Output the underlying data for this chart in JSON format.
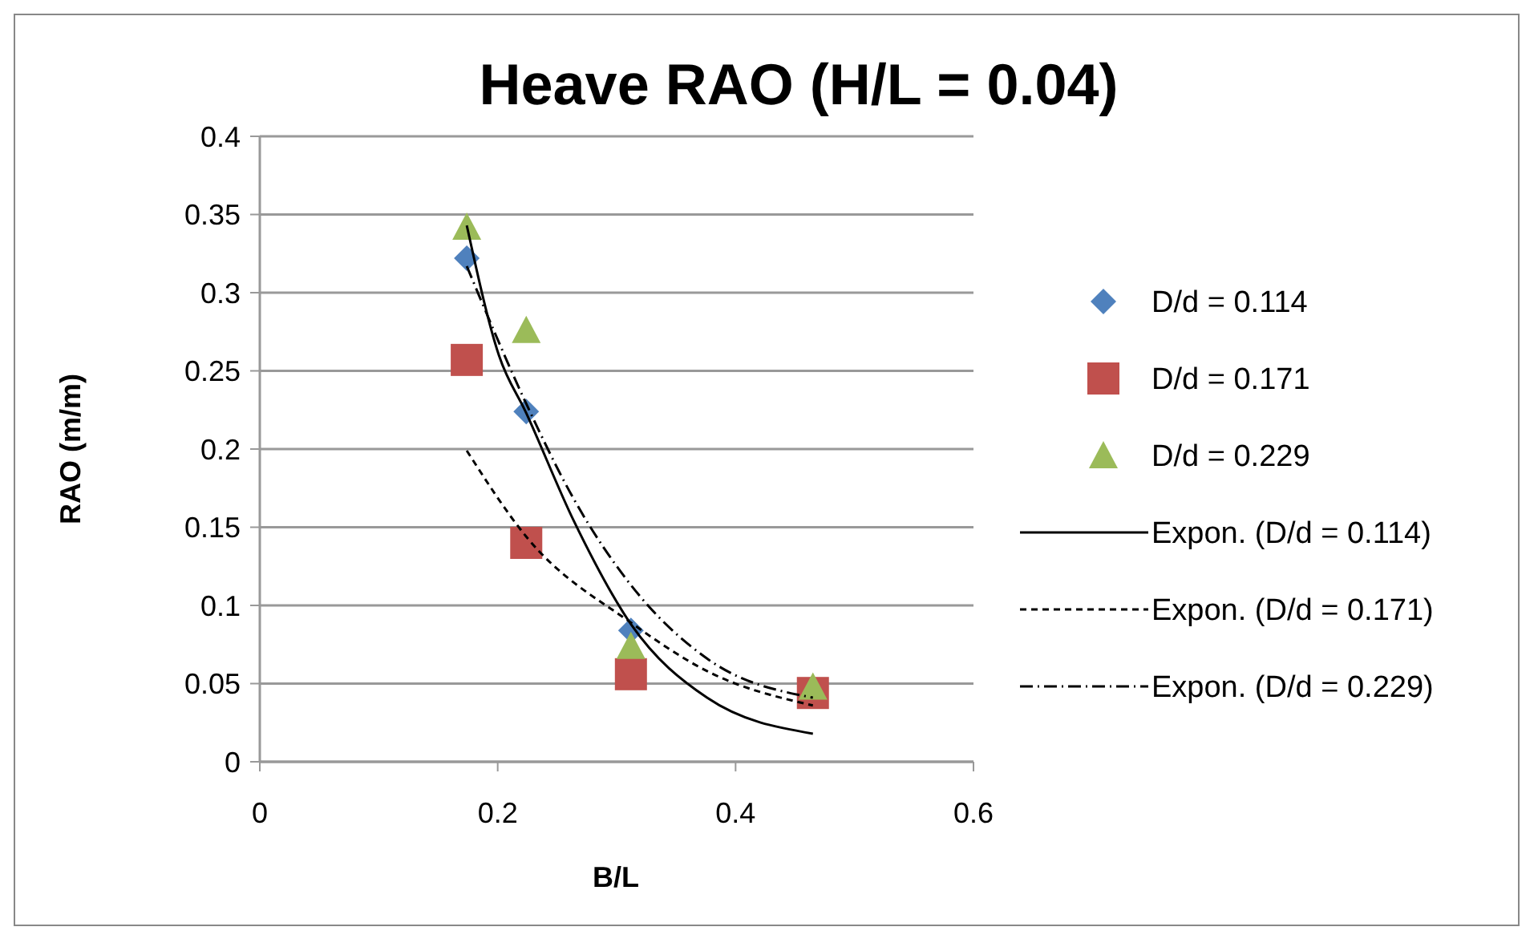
{
  "chart_data": {
    "type": "scatter",
    "title": "Heave RAO (H/L = 0.04)",
    "xlabel": "B/L",
    "ylabel": "RAO (m/m)",
    "xlim": [
      0,
      0.6
    ],
    "xticks": [
      0,
      0.2,
      0.4,
      0.6
    ],
    "ylim": [
      0,
      0.4
    ],
    "yticks": [
      0,
      0.05,
      0.1,
      0.15,
      0.2,
      0.25,
      0.3,
      0.35,
      0.4
    ],
    "grid": "y",
    "legend": "right",
    "series": [
      {
        "name": "D/d = 0.114",
        "marker": "diamond",
        "color": "#4f81bd",
        "x": [
          0.174,
          0.224,
          0.312
        ],
        "values": [
          0.322,
          0.224,
          0.084
        ]
      },
      {
        "name": "D/d = 0.171",
        "marker": "square",
        "color": "#c0504d",
        "x": [
          0.174,
          0.224,
          0.312,
          0.465
        ],
        "values": [
          0.257,
          0.14,
          0.056,
          0.044
        ]
      },
      {
        "name": "D/d = 0.229",
        "marker": "triangle",
        "color": "#9bbb59",
        "x": [
          0.174,
          0.224,
          0.312,
          0.465
        ],
        "values": [
          0.342,
          0.276,
          0.074,
          0.048
        ]
      },
      {
        "name": "Expon. (D/d = 0.114)",
        "type": "line",
        "line_style": "solid",
        "color": "#000000",
        "x": [
          0.174,
          0.201,
          0.224,
          0.264,
          0.312,
          0.376,
          0.465
        ],
        "values": [
          0.343,
          0.26,
          0.223,
          0.154,
          0.088,
          0.041,
          0.018
        ]
      },
      {
        "name": "Expon. (D/d = 0.171)",
        "type": "line",
        "line_style": "dashed",
        "color": "#000000",
        "x": [
          0.174,
          0.224,
          0.312,
          0.376,
          0.465
        ],
        "values": [
          0.199,
          0.144,
          0.089,
          0.058,
          0.036
        ]
      },
      {
        "name": "Expon. (D/d = 0.229)",
        "type": "line",
        "line_style": "dashdot",
        "color": "#000000",
        "x": [
          0.174,
          0.224,
          0.264,
          0.312,
          0.376,
          0.465
        ],
        "values": [
          0.317,
          0.229,
          0.168,
          0.113,
          0.066,
          0.041
        ]
      }
    ]
  }
}
